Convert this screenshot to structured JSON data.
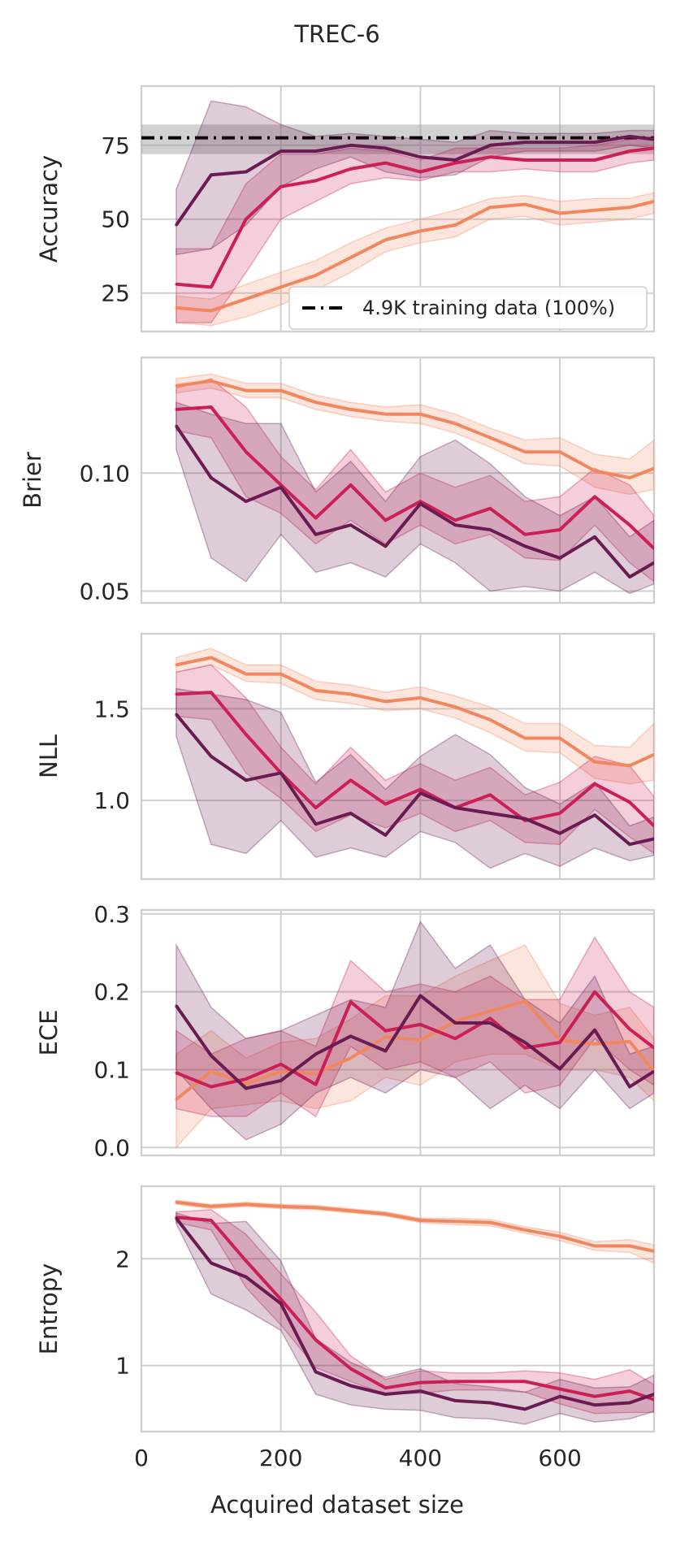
{
  "figure": {
    "title": "TREC-6",
    "xlabel": "Acquired dataset size",
    "xticks": [
      0,
      200,
      400,
      600
    ],
    "xlim": [
      0,
      735
    ]
  },
  "colors": {
    "dark": "#6a1c52",
    "mid": "#cc1f57",
    "light": "#f0875f",
    "baseline": "#000000",
    "baseline_band": "#999999",
    "grid": "#cfcfcf"
  },
  "chart_data": [
    {
      "type": "line",
      "ylabel": "Accuracy",
      "ylim": [
        12,
        95
      ],
      "yticks": [
        25,
        50,
        75
      ],
      "x": [
        50,
        100,
        150,
        200,
        250,
        300,
        350,
        400,
        450,
        500,
        550,
        600,
        650,
        700,
        735
      ],
      "baseline": {
        "label": "4.9K training data (100%)",
        "value": 77.5,
        "band": [
          72,
          82
        ],
        "style": "dashdot"
      },
      "legend": {
        "position": "lower-right",
        "entries": [
          "4.9K training data (100%)"
        ]
      },
      "series": [
        {
          "name": "light",
          "color": "#f0875f",
          "values": [
            20,
            19,
            23,
            27,
            31,
            37,
            43,
            46,
            48,
            54,
            55,
            52,
            53,
            54,
            56
          ],
          "lower": [
            15,
            14,
            17,
            21,
            26,
            32,
            39,
            42,
            44,
            50,
            51,
            48,
            49,
            50,
            52
          ],
          "upper": [
            24,
            23,
            28,
            32,
            36,
            42,
            47,
            50,
            53,
            57,
            58,
            56,
            57,
            57,
            59
          ]
        },
        {
          "name": "mid",
          "color": "#cc1f57",
          "values": [
            28,
            27,
            50,
            61,
            63,
            67,
            69,
            66,
            69,
            71,
            70,
            70,
            70,
            73,
            74
          ],
          "lower": [
            15,
            15,
            32,
            50,
            56,
            62,
            64,
            63,
            66,
            66,
            67,
            66,
            66,
            69,
            70
          ],
          "upper": [
            40,
            40,
            62,
            72,
            72,
            74,
            73,
            70,
            74,
            74,
            74,
            74,
            75,
            77,
            78
          ]
        },
        {
          "name": "dark",
          "color": "#6a1c52",
          "values": [
            48,
            65,
            66,
            73,
            73,
            75,
            74,
            71,
            70,
            75,
            76,
            76,
            76,
            78,
            77
          ],
          "lower": [
            38,
            40,
            48,
            61,
            67,
            71,
            66,
            64,
            65,
            71,
            73,
            73,
            73,
            75,
            74
          ],
          "upper": [
            60,
            90,
            88,
            82,
            78,
            79,
            78,
            77,
            76,
            80,
            79,
            79,
            79,
            80,
            80
          ]
        }
      ]
    },
    {
      "type": "line",
      "ylabel": "Brier",
      "ylim": [
        0.045,
        0.149
      ],
      "yticks": [
        0.05,
        0.1
      ],
      "ytick_labels": [
        "0.05",
        "0.10"
      ],
      "x": [
        50,
        100,
        150,
        200,
        250,
        300,
        350,
        400,
        450,
        500,
        550,
        600,
        650,
        700,
        735
      ],
      "series": [
        {
          "name": "light",
          "color": "#f0875f",
          "values": [
            0.137,
            0.139,
            0.135,
            0.135,
            0.13,
            0.127,
            0.125,
            0.125,
            0.121,
            0.115,
            0.109,
            0.109,
            0.101,
            0.098,
            0.102
          ],
          "lower": [
            0.134,
            0.136,
            0.132,
            0.132,
            0.127,
            0.124,
            0.122,
            0.121,
            0.117,
            0.111,
            0.104,
            0.103,
            0.094,
            0.091,
            0.093
          ],
          "upper": [
            0.14,
            0.142,
            0.138,
            0.138,
            0.133,
            0.13,
            0.128,
            0.129,
            0.125,
            0.119,
            0.114,
            0.115,
            0.108,
            0.106,
            0.114
          ]
        },
        {
          "name": "mid",
          "color": "#cc1f57",
          "values": [
            0.127,
            0.128,
            0.109,
            0.095,
            0.081,
            0.095,
            0.08,
            0.088,
            0.08,
            0.085,
            0.074,
            0.076,
            0.09,
            0.078,
            0.068
          ],
          "lower": [
            0.118,
            0.115,
            0.09,
            0.083,
            0.07,
            0.08,
            0.07,
            0.078,
            0.07,
            0.074,
            0.064,
            0.063,
            0.078,
            0.062,
            0.054
          ],
          "upper": [
            0.136,
            0.14,
            0.128,
            0.107,
            0.093,
            0.11,
            0.092,
            0.1,
            0.094,
            0.099,
            0.088,
            0.09,
            0.102,
            0.095,
            0.082
          ]
        },
        {
          "name": "dark",
          "color": "#6a1c52",
          "values": [
            0.12,
            0.098,
            0.088,
            0.094,
            0.074,
            0.078,
            0.069,
            0.087,
            0.078,
            0.076,
            0.069,
            0.064,
            0.073,
            0.056,
            0.062
          ],
          "lower": [
            0.11,
            0.064,
            0.054,
            0.074,
            0.058,
            0.062,
            0.056,
            0.07,
            0.062,
            0.05,
            0.052,
            0.05,
            0.058,
            0.049,
            0.053
          ],
          "upper": [
            0.13,
            0.125,
            0.121,
            0.121,
            0.092,
            0.105,
            0.088,
            0.107,
            0.114,
            0.104,
            0.09,
            0.082,
            0.09,
            0.073,
            0.08
          ]
        }
      ]
    },
    {
      "type": "line",
      "ylabel": "NLL",
      "ylim": [
        0.57,
        1.91
      ],
      "yticks": [
        1.0,
        1.5
      ],
      "ytick_labels": [
        "1.0",
        "1.5"
      ],
      "x": [
        50,
        100,
        150,
        200,
        250,
        300,
        350,
        400,
        450,
        500,
        550,
        600,
        650,
        700,
        735
      ],
      "series": [
        {
          "name": "light",
          "color": "#f0875f",
          "values": [
            1.74,
            1.78,
            1.69,
            1.69,
            1.6,
            1.58,
            1.54,
            1.56,
            1.51,
            1.44,
            1.34,
            1.34,
            1.21,
            1.19,
            1.25
          ],
          "lower": [
            1.7,
            1.74,
            1.65,
            1.64,
            1.55,
            1.53,
            1.49,
            1.5,
            1.45,
            1.37,
            1.27,
            1.26,
            1.12,
            1.09,
            1.11
          ],
          "upper": [
            1.78,
            1.83,
            1.74,
            1.74,
            1.65,
            1.63,
            1.59,
            1.62,
            1.57,
            1.51,
            1.42,
            1.42,
            1.3,
            1.29,
            1.42
          ]
        },
        {
          "name": "mid",
          "color": "#cc1f57",
          "values": [
            1.58,
            1.59,
            1.36,
            1.15,
            0.96,
            1.11,
            0.98,
            1.06,
            0.96,
            1.03,
            0.89,
            0.93,
            1.09,
            0.99,
            0.86
          ],
          "lower": [
            1.46,
            1.44,
            1.15,
            1.01,
            0.83,
            0.92,
            0.85,
            0.93,
            0.83,
            0.89,
            0.77,
            0.76,
            0.95,
            0.8,
            0.71
          ],
          "upper": [
            1.7,
            1.74,
            1.56,
            1.29,
            1.09,
            1.29,
            1.11,
            1.2,
            1.11,
            1.18,
            1.03,
            1.1,
            1.24,
            1.19,
            1.02
          ]
        },
        {
          "name": "dark",
          "color": "#6a1c52",
          "values": [
            1.47,
            1.24,
            1.11,
            1.15,
            0.87,
            0.93,
            0.81,
            1.04,
            0.96,
            0.93,
            0.9,
            0.82,
            0.92,
            0.76,
            0.79
          ],
          "lower": [
            1.35,
            0.76,
            0.71,
            0.89,
            0.69,
            0.74,
            0.69,
            0.83,
            0.77,
            0.63,
            0.71,
            0.64,
            0.74,
            0.67,
            0.7
          ],
          "upper": [
            1.61,
            1.58,
            1.55,
            1.48,
            1.1,
            1.25,
            1.06,
            1.24,
            1.36,
            1.25,
            1.07,
            0.98,
            1.1,
            0.86,
            0.91
          ]
        }
      ]
    },
    {
      "type": "line",
      "ylabel": "ECE",
      "ylim": [
        -0.01,
        0.305
      ],
      "yticks": [
        0.0,
        0.1,
        0.2,
        0.3
      ],
      "ytick_labels": [
        "0.0",
        "0.1",
        "0.2",
        "0.3"
      ],
      "x": [
        50,
        100,
        150,
        200,
        250,
        300,
        350,
        400,
        450,
        500,
        550,
        600,
        650,
        700,
        735
      ],
      "series": [
        {
          "name": "light",
          "color": "#f0875f",
          "values": [
            0.062,
            0.098,
            0.082,
            0.098,
            0.095,
            0.115,
            0.142,
            0.138,
            0.162,
            0.175,
            0.188,
            0.138,
            0.133,
            0.136,
            0.098
          ],
          "lower": [
            0.0,
            0.05,
            0.055,
            0.06,
            0.05,
            0.06,
            0.09,
            0.08,
            0.11,
            0.12,
            0.12,
            0.1,
            0.1,
            0.09,
            0.06
          ],
          "upper": [
            0.12,
            0.15,
            0.115,
            0.135,
            0.14,
            0.165,
            0.195,
            0.195,
            0.22,
            0.24,
            0.26,
            0.185,
            0.17,
            0.18,
            0.14
          ]
        },
        {
          "name": "mid",
          "color": "#cc1f57",
          "values": [
            0.096,
            0.078,
            0.088,
            0.107,
            0.081,
            0.187,
            0.15,
            0.158,
            0.14,
            0.166,
            0.128,
            0.135,
            0.2,
            0.152,
            0.128
          ],
          "lower": [
            0.05,
            0.04,
            0.04,
            0.07,
            0.04,
            0.13,
            0.1,
            0.11,
            0.09,
            0.11,
            0.07,
            0.08,
            0.14,
            0.1,
            0.08
          ],
          "upper": [
            0.15,
            0.12,
            0.14,
            0.15,
            0.13,
            0.24,
            0.2,
            0.21,
            0.2,
            0.22,
            0.19,
            0.19,
            0.27,
            0.2,
            0.18
          ]
        },
        {
          "name": "dark",
          "color": "#6a1c52",
          "values": [
            0.182,
            0.118,
            0.076,
            0.086,
            0.12,
            0.143,
            0.124,
            0.195,
            0.16,
            0.16,
            0.135,
            0.101,
            0.151,
            0.078,
            0.098
          ],
          "lower": [
            0.1,
            0.05,
            0.01,
            0.03,
            0.07,
            0.09,
            0.07,
            0.1,
            0.09,
            0.05,
            0.08,
            0.05,
            0.1,
            0.05,
            0.07
          ],
          "upper": [
            0.26,
            0.18,
            0.14,
            0.15,
            0.17,
            0.19,
            0.18,
            0.29,
            0.23,
            0.26,
            0.19,
            0.16,
            0.22,
            0.12,
            0.13
          ]
        }
      ]
    },
    {
      "type": "line",
      "ylabel": "Entropy",
      "ylim": [
        0.38,
        2.68
      ],
      "yticks": [
        1,
        2
      ],
      "ytick_labels": [
        "1",
        "2"
      ],
      "x": [
        50,
        100,
        150,
        200,
        250,
        300,
        350,
        400,
        450,
        500,
        550,
        600,
        650,
        700,
        735
      ],
      "series": [
        {
          "name": "light",
          "color": "#f0875f",
          "values": [
            2.53,
            2.49,
            2.51,
            2.49,
            2.48,
            2.45,
            2.42,
            2.36,
            2.35,
            2.34,
            2.27,
            2.21,
            2.12,
            2.12,
            2.07
          ],
          "lower": [
            2.51,
            2.47,
            2.49,
            2.47,
            2.46,
            2.43,
            2.4,
            2.34,
            2.32,
            2.31,
            2.24,
            2.17,
            2.08,
            2.06,
            1.96
          ],
          "upper": [
            2.55,
            2.51,
            2.53,
            2.51,
            2.5,
            2.47,
            2.44,
            2.38,
            2.38,
            2.37,
            2.3,
            2.25,
            2.16,
            2.18,
            2.13
          ]
        },
        {
          "name": "mid",
          "color": "#cc1f57",
          "values": [
            2.39,
            2.36,
            1.98,
            1.62,
            1.24,
            0.97,
            0.79,
            0.84,
            0.85,
            0.85,
            0.85,
            0.78,
            0.71,
            0.76,
            0.68
          ],
          "lower": [
            2.34,
            2.27,
            1.73,
            1.38,
            0.98,
            0.85,
            0.73,
            0.74,
            0.77,
            0.77,
            0.75,
            0.64,
            0.55,
            0.56,
            0.56
          ],
          "upper": [
            2.44,
            2.46,
            2.23,
            1.86,
            1.5,
            1.09,
            0.87,
            0.95,
            0.93,
            0.93,
            0.95,
            0.93,
            0.87,
            0.96,
            0.82
          ]
        },
        {
          "name": "dark",
          "color": "#6a1c52",
          "values": [
            2.38,
            1.96,
            1.83,
            1.58,
            0.94,
            0.81,
            0.73,
            0.76,
            0.67,
            0.65,
            0.59,
            0.71,
            0.63,
            0.65,
            0.73
          ],
          "lower": [
            2.33,
            1.67,
            1.52,
            1.33,
            0.73,
            0.63,
            0.59,
            0.58,
            0.51,
            0.5,
            0.45,
            0.55,
            0.47,
            0.5,
            0.57
          ],
          "upper": [
            2.43,
            2.33,
            2.35,
            1.98,
            1.25,
            1.03,
            0.89,
            0.97,
            0.83,
            0.8,
            0.75,
            0.87,
            0.79,
            0.8,
            0.91
          ]
        }
      ]
    }
  ]
}
